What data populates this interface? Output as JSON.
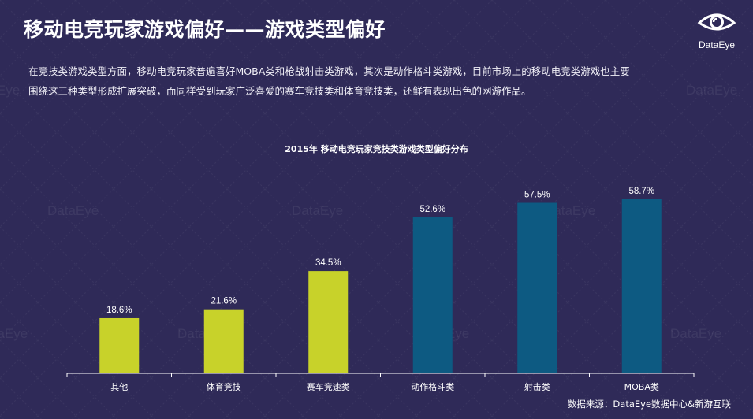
{
  "header": {
    "title": "移动电竞玩家游戏偏好——游戏类型偏好",
    "logo_text": "DataEye",
    "logo_icon": "eye-icon"
  },
  "description": {
    "line1": "在竞技类游戏类型方面，移动电竞玩家普遍喜好MOBA类和枪战射击类游戏，其次是动作格斗类游戏，目前市场上的移动电竞类游戏也主要",
    "line2": "围绕这三种类型形成扩展突破，而同样受到玩家广泛喜爱的赛车竞技类和体育竞技类，还鲜有表现出色的网游作品。"
  },
  "watermark": "DataEye",
  "chart_data": {
    "type": "bar",
    "title": "2015年 移动电竞玩家竞技类游戏类型偏好分布",
    "categories": [
      "其他",
      "体育竞技",
      "赛车竞速类",
      "动作格斗类",
      "射击类",
      "MOBA类"
    ],
    "values": [
      18.6,
      21.6,
      34.5,
      52.6,
      57.5,
      58.7
    ],
    "value_labels": [
      "18.6%",
      "21.6%",
      "34.5%",
      "52.6%",
      "57.5%",
      "58.7%"
    ],
    "bar_colors": [
      "#c8d22a",
      "#c8d22a",
      "#c8d22a",
      "#0d5a82",
      "#0d5a82",
      "#0d5a82"
    ],
    "unit": "%",
    "ylim": [
      0,
      60
    ],
    "grid": false,
    "legend": "none"
  },
  "footer": {
    "source": "数据来源：DataEye数据中心&新游互联"
  },
  "colors": {
    "background": "#2f2a58",
    "highlight_bar": "#c8d22a",
    "primary_bar": "#0d5a82",
    "axis": "#ffffff"
  }
}
